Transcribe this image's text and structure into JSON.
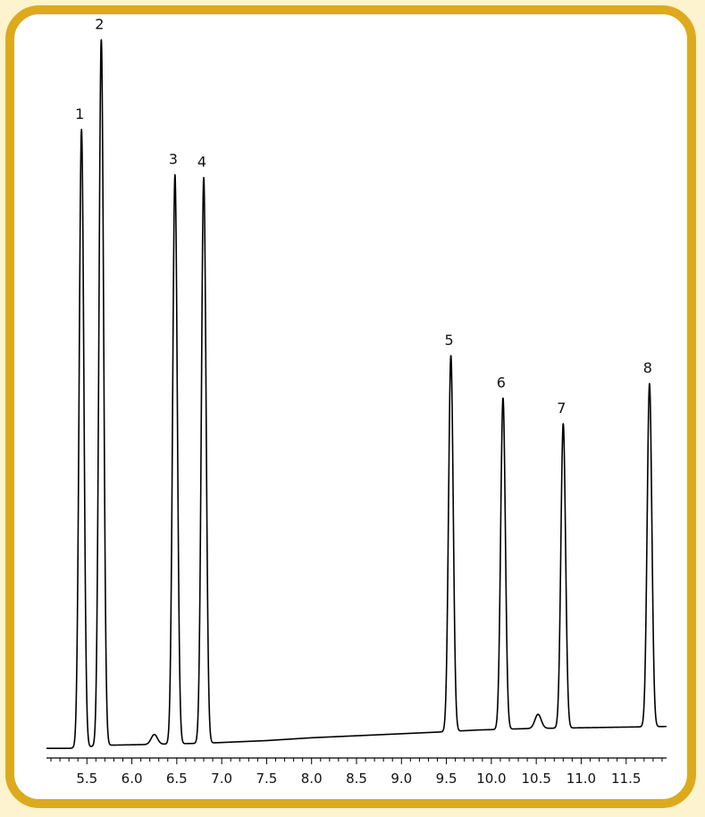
{
  "chart_data": {
    "type": "line",
    "title": "",
    "xlabel": "",
    "ylabel": "",
    "xlim": [
      5.05,
      11.95
    ],
    "ylim": [
      0,
      100
    ],
    "grid": false,
    "x_ticks": [
      "5.5",
      "6.0",
      "6.5",
      "7.0",
      "7.5",
      "8.0",
      "8.5",
      "9.0",
      "9.5",
      "10.0",
      "10.5",
      "11.0",
      "11.5"
    ],
    "baseline": {
      "start": [
        5.05,
        0.1
      ],
      "points": [
        [
          5.3,
          0.1
        ],
        [
          5.75,
          0.55
        ],
        [
          6.2,
          0.65
        ],
        [
          6.85,
          0.85
        ],
        [
          7.5,
          1.2
        ],
        [
          8.0,
          1.6
        ],
        [
          9.4,
          2.4
        ],
        [
          9.85,
          2.7
        ],
        [
          10.4,
          2.9
        ],
        [
          11.95,
          3.2
        ]
      ]
    },
    "peaks": [
      {
        "label": "1",
        "x": 5.44,
        "height": 87.5
      },
      {
        "label": "2",
        "x": 5.66,
        "height": 100.0
      },
      {
        "label": "3",
        "x": 6.48,
        "height": 80.6
      },
      {
        "label": "4",
        "x": 6.8,
        "height": 80.1
      },
      {
        "label": "5",
        "x": 9.55,
        "height": 53.2
      },
      {
        "label": "6",
        "x": 10.13,
        "height": 46.9
      },
      {
        "label": "7",
        "x": 10.8,
        "height": 43.1
      },
      {
        "label": "8",
        "x": 11.76,
        "height": 48.6
      }
    ],
    "minor_peaks": [
      {
        "x": 6.25,
        "height": 1.4
      },
      {
        "x": 10.52,
        "height": 2.0
      }
    ]
  }
}
